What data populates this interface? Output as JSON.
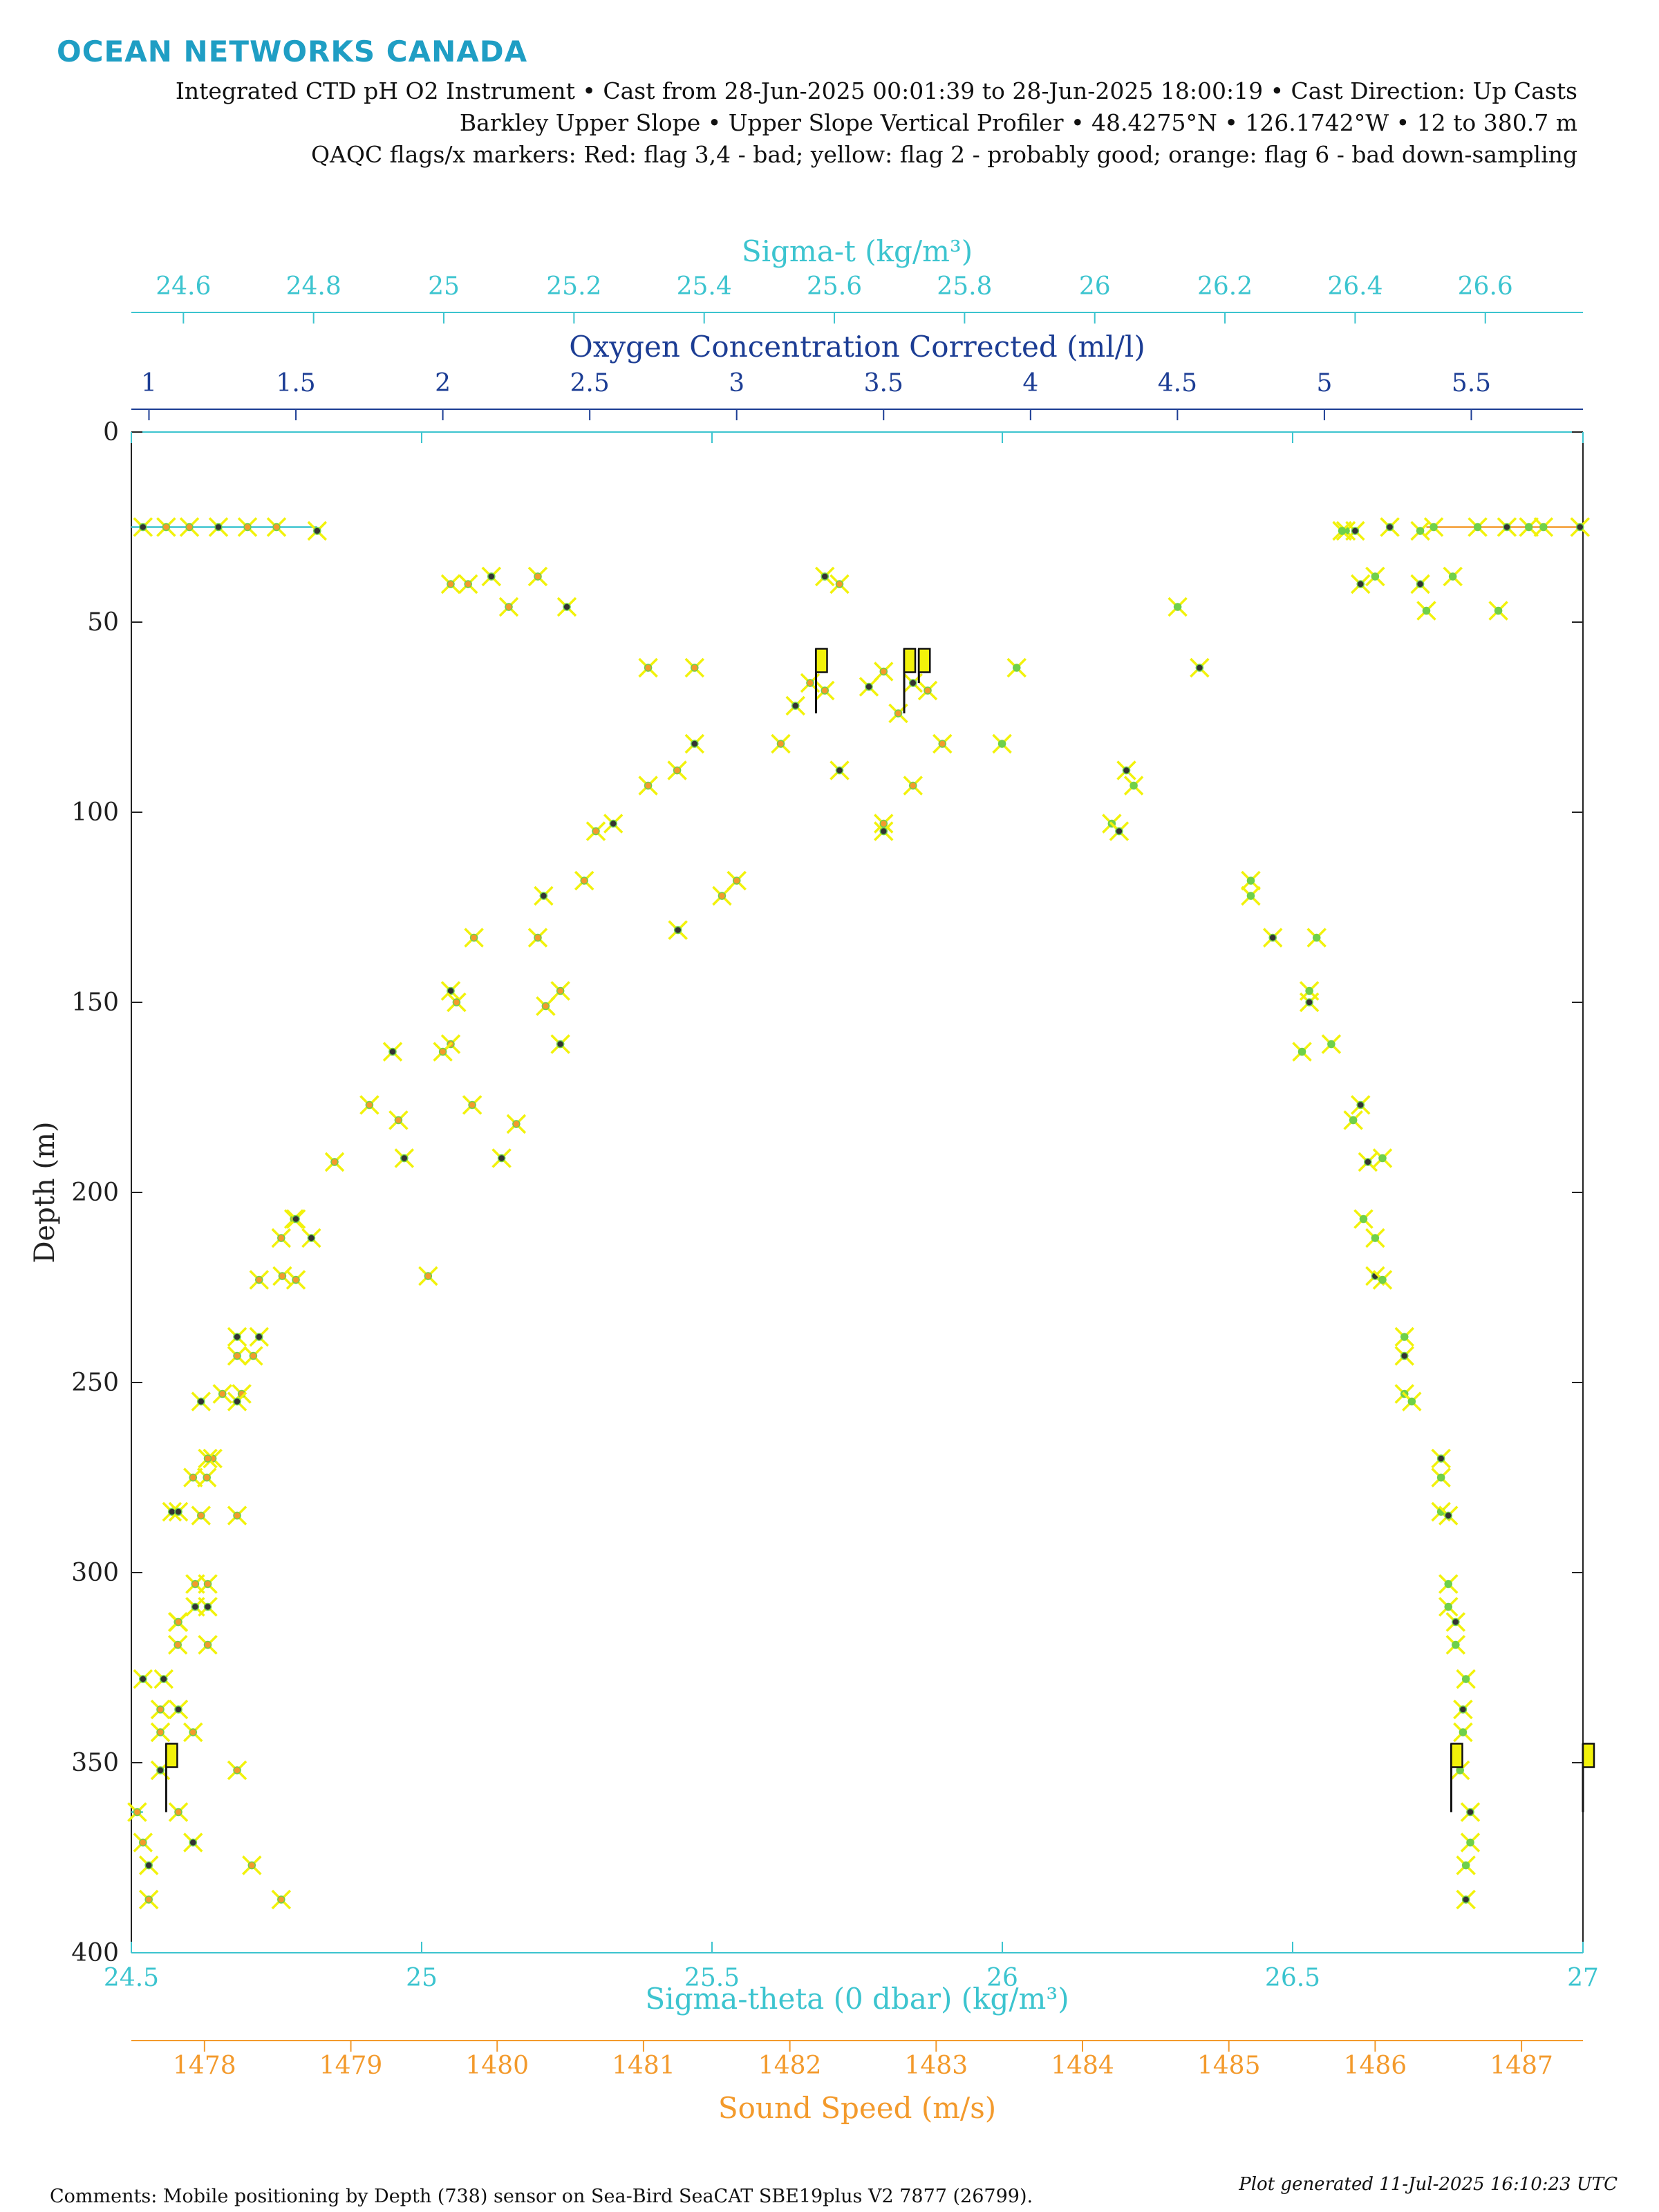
{
  "header": {
    "brand": "OCEAN NETWORKS CANADA",
    "line1": "Integrated CTD pH O2 Instrument • Cast from 28-Jun-2025 00:01:39 to 28-Jun-2025 18:00:19 • Cast Direction: Up Casts",
    "line2": "Barkley Upper Slope • Upper Slope Vertical Profiler • 48.4275°N • 126.1742°W • 12 to 380.7 m",
    "line3": "QAQC flags/x markers: Red: flag 3,4 - bad; yellow: flag 2 - probably good; orange: flag 6 - bad down-sampling"
  },
  "footer": {
    "comments": "Comments: Mobile positioning by Depth (738) sensor on Sea-Bird SeaCAT SBE19plus V2 7877 (26799).",
    "generated": "Plot generated 11-Jul-2025 16:10:23 UTC"
  },
  "colors": {
    "sigma_t": "#3cc4cf",
    "oxygen": "#1c3d94",
    "sigma_theta": "#3cc4cf",
    "sound_speed": "#f39a2c",
    "flag_yellow": "#f2f20a",
    "marker_green": "#6fd04a",
    "marker_dark": "#333333"
  },
  "chart_data": {
    "type": "scatter",
    "y_axis": {
      "label": "Depth (m)",
      "range": [
        0,
        400
      ],
      "reversed": true,
      "ticks": [
        0,
        50,
        100,
        150,
        200,
        250,
        300,
        350,
        400
      ]
    },
    "x_axes": [
      {
        "key": "sigma_t",
        "label": "Sigma-t",
        "unit": "(kg/m³)",
        "position": "top",
        "range": [
          24.52,
          26.75
        ],
        "ticks": [
          24.6,
          24.8,
          25,
          25.2,
          25.4,
          25.6,
          25.8,
          26,
          26.2,
          26.4,
          26.6
        ]
      },
      {
        "key": "oxygen",
        "label": "Oxygen Concentration Corrected (ml/l)",
        "position": "top",
        "range": [
          0.94,
          5.88
        ],
        "ticks": [
          1,
          1.5,
          2,
          2.5,
          3,
          3.5,
          4,
          4.5,
          5,
          5.5
        ]
      },
      {
        "key": "sigma_theta",
        "label": "Sigma-theta (0 dbar)",
        "unit": "(kg/m³)",
        "position": "bottom",
        "range": [
          24.5,
          27
        ],
        "ticks": [
          24.5,
          25,
          25.5,
          26,
          26.5,
          27
        ]
      },
      {
        "key": "sound_speed",
        "label": "Sound Speed (m/s)",
        "position": "bottom",
        "range": [
          1477.5,
          1487.42
        ],
        "ticks": [
          1478,
          1479,
          1480,
          1481,
          1482,
          1483,
          1484,
          1485,
          1486,
          1487
        ]
      }
    ],
    "grid": false,
    "legend": "none",
    "series": [
      {
        "key": "sigma_theta",
        "axis": "sigma_theta",
        "marker": "x",
        "points": [
          [
            24.52,
            25
          ],
          [
            24.56,
            25
          ],
          [
            24.6,
            25
          ],
          [
            24.65,
            25
          ],
          [
            24.7,
            25
          ],
          [
            24.75,
            25
          ],
          [
            24.82,
            26
          ],
          [
            25.05,
            40
          ],
          [
            25.08,
            40
          ],
          [
            25.12,
            38
          ],
          [
            25.15,
            46
          ],
          [
            25.2,
            38
          ],
          [
            25.25,
            46
          ],
          [
            25.39,
            62
          ],
          [
            25.47,
            62
          ],
          [
            25.47,
            82
          ],
          [
            25.44,
            89
          ],
          [
            25.39,
            93
          ],
          [
            25.33,
            103
          ],
          [
            25.3,
            105
          ],
          [
            25.28,
            118
          ],
          [
            25.21,
            122
          ],
          [
            25.2,
            133
          ],
          [
            25.09,
            133
          ],
          [
            25.05,
            147
          ],
          [
            25.06,
            150
          ],
          [
            25.05,
            161
          ],
          [
            24.95,
            163
          ],
          [
            24.91,
            177
          ],
          [
            24.96,
            181
          ],
          [
            24.97,
            191
          ],
          [
            24.85,
            192
          ],
          [
            24.78,
            207
          ],
          [
            24.81,
            212
          ],
          [
            24.76,
            222
          ],
          [
            24.72,
            223
          ],
          [
            24.72,
            238
          ],
          [
            24.71,
            243
          ],
          [
            24.69,
            253
          ],
          [
            24.62,
            255
          ],
          [
            24.64,
            270
          ],
          [
            24.63,
            275
          ],
          [
            24.57,
            284
          ],
          [
            24.62,
            285
          ],
          [
            24.61,
            303
          ],
          [
            24.61,
            309
          ],
          [
            24.58,
            313
          ],
          [
            24.58,
            319
          ],
          [
            24.52,
            328
          ],
          [
            24.55,
            336
          ],
          [
            24.55,
            342
          ],
          [
            24.55,
            352
          ],
          [
            24.51,
            363
          ],
          [
            24.52,
            371
          ],
          [
            24.53,
            377
          ],
          [
            24.53,
            386
          ]
        ]
      },
      {
        "key": "sound_speed",
        "axis": "sound_speed",
        "marker": "x",
        "points": [
          [
            1487.4,
            25
          ],
          [
            1487.15,
            25
          ],
          [
            1487.05,
            25
          ],
          [
            1486.9,
            25
          ],
          [
            1486.7,
            25
          ],
          [
            1486.4,
            25
          ],
          [
            1486.1,
            25
          ],
          [
            1485.8,
            26
          ],
          [
            1486.0,
            38
          ],
          [
            1485.9,
            40
          ],
          [
            1486.35,
            47
          ],
          [
            1484.65,
            46
          ],
          [
            1484.8,
            62
          ],
          [
            1483.55,
            62
          ],
          [
            1483.45,
            82
          ],
          [
            1484.3,
            89
          ],
          [
            1484.35,
            93
          ],
          [
            1484.2,
            103
          ],
          [
            1484.25,
            105
          ],
          [
            1485.15,
            118
          ],
          [
            1485.15,
            122
          ],
          [
            1485.3,
            133
          ],
          [
            1485.6,
            133
          ],
          [
            1485.55,
            147
          ],
          [
            1485.55,
            150
          ],
          [
            1485.7,
            161
          ],
          [
            1485.5,
            163
          ],
          [
            1485.9,
            177
          ],
          [
            1485.85,
            181
          ],
          [
            1486.05,
            191
          ],
          [
            1485.95,
            192
          ],
          [
            1485.92,
            207
          ],
          [
            1486.0,
            212
          ],
          [
            1486.0,
            222
          ],
          [
            1486.05,
            223
          ],
          [
            1486.2,
            238
          ],
          [
            1486.2,
            243
          ],
          [
            1486.2,
            253
          ],
          [
            1486.25,
            255
          ],
          [
            1486.45,
            270
          ],
          [
            1486.45,
            275
          ],
          [
            1486.45,
            284
          ],
          [
            1486.5,
            285
          ],
          [
            1486.5,
            303
          ],
          [
            1486.5,
            309
          ],
          [
            1486.55,
            313
          ],
          [
            1486.55,
            319
          ],
          [
            1486.62,
            328
          ],
          [
            1486.6,
            336
          ],
          [
            1486.6,
            342
          ],
          [
            1486.58,
            352
          ],
          [
            1486.65,
            363
          ],
          [
            1486.65,
            371
          ],
          [
            1486.62,
            377
          ],
          [
            1486.62,
            386
          ]
        ]
      },
      {
        "key": "sigma_t",
        "axis": "sigma_t",
        "marker": "x",
        "points": [
          [
            26.4,
            26
          ],
          [
            26.5,
            26
          ],
          [
            26.62,
            47
          ],
          [
            26.5,
            40
          ],
          [
            26.55,
            38
          ],
          [
            26.38,
            26
          ]
        ]
      },
      {
        "key": "oxygen",
        "axis": "oxygen",
        "marker": "x",
        "points": [
          [
            3.2,
            72
          ],
          [
            3.3,
            68
          ],
          [
            3.25,
            66
          ],
          [
            3.6,
            66
          ],
          [
            3.65,
            68
          ],
          [
            3.55,
            74
          ],
          [
            3.45,
            67
          ],
          [
            3.5,
            63
          ],
          [
            3.35,
            40
          ],
          [
            3.3,
            38
          ],
          [
            3.7,
            82
          ],
          [
            3.15,
            82
          ],
          [
            3.35,
            89
          ],
          [
            3.6,
            93
          ],
          [
            3.5,
            103
          ],
          [
            3.5,
            105
          ],
          [
            3.0,
            118
          ],
          [
            2.95,
            122
          ],
          [
            2.8,
            131
          ],
          [
            2.4,
            147
          ],
          [
            2.35,
            151
          ],
          [
            2.4,
            161
          ],
          [
            2.25,
            182
          ],
          [
            2.1,
            177
          ],
          [
            2.2,
            191
          ],
          [
            2.0,
            163
          ],
          [
            1.95,
            222
          ],
          [
            1.5,
            207
          ],
          [
            1.45,
            212
          ],
          [
            1.5,
            223
          ],
          [
            1.3,
            238
          ],
          [
            1.3,
            243
          ],
          [
            1.25,
            253
          ],
          [
            1.3,
            255
          ],
          [
            1.2,
            270
          ],
          [
            1.15,
            275
          ],
          [
            1.1,
            284
          ],
          [
            1.3,
            285
          ],
          [
            1.2,
            303
          ],
          [
            1.2,
            309
          ],
          [
            1.1,
            313
          ],
          [
            1.2,
            319
          ],
          [
            1.1,
            336
          ],
          [
            1.15,
            342
          ],
          [
            1.3,
            352
          ],
          [
            1.15,
            371
          ],
          [
            1.35,
            377
          ],
          [
            1.45,
            386
          ],
          [
            1.05,
            328
          ],
          [
            1.1,
            363
          ]
        ]
      }
    ],
    "flags": [
      {
        "axis": "oxygen",
        "x": 3.27,
        "y_top": 57,
        "y_bottom": 74
      },
      {
        "axis": "oxygen",
        "x": 3.57,
        "y_top": 57,
        "y_bottom": 74
      },
      {
        "axis": "oxygen",
        "x": 3.62,
        "y_top": 57,
        "y_bottom": 66
      },
      {
        "axis": "sigma_theta",
        "x": 24.56,
        "y_top": 345,
        "y_bottom": 363
      },
      {
        "axis": "sound_speed",
        "x": 1486.52,
        "y_top": 345,
        "y_bottom": 363
      },
      {
        "axis": "sound_speed",
        "x": 1487.42,
        "y_top": 345,
        "y_bottom": 363
      }
    ],
    "lines": [
      {
        "axis": "sigma_theta",
        "points": [
          [
            24.5,
            25
          ],
          [
            24.82,
            25
          ]
        ]
      },
      {
        "axis": "sound_speed",
        "points": [
          [
            1486.35,
            25
          ],
          [
            1487.42,
            25
          ]
        ]
      },
      {
        "axis": "sigma_theta",
        "points": [
          [
            24.5,
            363
          ],
          [
            24.52,
            363
          ]
        ]
      }
    ]
  }
}
